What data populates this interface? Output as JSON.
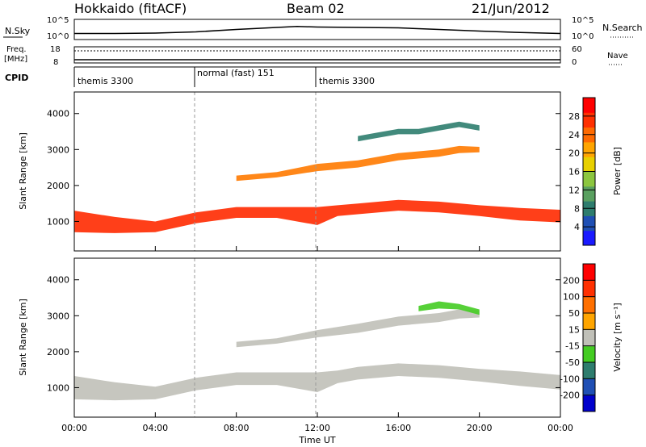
{
  "header": {
    "station": "Hokkaido (fitACF)",
    "beam": "Beam 02",
    "date": "21/Jun/2012"
  },
  "chart_data": [
    {
      "type": "line",
      "panel": "noise",
      "left_label": "N.Sky",
      "right_label": "N.Search",
      "left_ticks": [
        "10^5",
        "10^0"
      ],
      "right_ticks": [
        "10^5",
        "10^0"
      ],
      "series": [
        {
          "name": "N.Sky",
          "style": "solid",
          "x": [
            0,
            2,
            4,
            6,
            8,
            9,
            10,
            11,
            12,
            14,
            16,
            18,
            20,
            22,
            24
          ],
          "y": [
            0.3,
            0.3,
            0.32,
            0.38,
            0.5,
            0.55,
            0.6,
            0.65,
            0.62,
            0.6,
            0.58,
            0.5,
            0.42,
            0.35,
            0.3
          ]
        },
        {
          "name": "N.Search",
          "style": "dotted"
        }
      ]
    },
    {
      "type": "line",
      "panel": "frequency",
      "left_label_lines": [
        "Freq.",
        "[MHz]"
      ],
      "right_label": "Nave",
      "left_ticks": [
        "18",
        "8"
      ],
      "right_ticks": [
        "60",
        "0"
      ],
      "series": [
        {
          "name": "Freq.",
          "style": "solid",
          "x": [
            0,
            24
          ],
          "y": [
            0.2,
            0.2
          ]
        },
        {
          "name": "Nave",
          "style": "dotted",
          "x": [
            0,
            24
          ],
          "y": [
            0.75,
            0.75
          ]
        }
      ]
    },
    {
      "type": "table",
      "panel": "cpid",
      "label": "CPID",
      "segments": [
        {
          "start": 0,
          "end": 6,
          "text": "themis 3300"
        },
        {
          "start": 6,
          "end": 12,
          "text": "normal (fast) 151"
        },
        {
          "start": 12,
          "end": 24,
          "text": "themis 3300"
        }
      ]
    },
    {
      "type": "heatmap",
      "panel": "power",
      "ylabel": "Slant Range [km]",
      "ylim": [
        180,
        4600
      ],
      "yticks": [
        "1000",
        "2000",
        "3000",
        "4000"
      ],
      "ytick_values": [
        1000,
        2000,
        3000,
        4000
      ],
      "colorbar": {
        "label": "Power [dB]",
        "range": [
          0,
          32
        ],
        "ticks": [
          "4",
          "8",
          "12",
          "16",
          "20",
          "24",
          "28"
        ],
        "colors": [
          "#1a1aff",
          "#1f4fb4",
          "#2e7d6e",
          "#5aa060",
          "#8cc63f",
          "#e8d000",
          "#ffa500",
          "#ff6a00",
          "#ff3000",
          "#ff0000"
        ]
      },
      "bands": [
        {
          "x": [
            0,
            2,
            4,
            6,
            8,
            10,
            12,
            13,
            14,
            16,
            18,
            20,
            22,
            24
          ],
          "center": [
            1000,
            900,
            850,
            1100,
            1250,
            1250,
            1150,
            1300,
            1350,
            1450,
            1400,
            1300,
            1200,
            1150
          ],
          "width": [
            600,
            450,
            300,
            300,
            300,
            300,
            500,
            300,
            300,
            300,
            300,
            300,
            350,
            350
          ],
          "color": "#ff2a00"
        },
        {
          "x": [
            8,
            10,
            12,
            14,
            16,
            18,
            19,
            20
          ],
          "center": [
            2200,
            2300,
            2500,
            2600,
            2800,
            2900,
            3000,
            3000
          ],
          "width": [
            150,
            150,
            200,
            200,
            200,
            200,
            200,
            150
          ],
          "color": "#ff7a00"
        },
        {
          "x": [
            14,
            15,
            16,
            17,
            18,
            19,
            20
          ],
          "center": [
            3300,
            3400,
            3500,
            3500,
            3600,
            3700,
            3600
          ],
          "width": [
            150,
            150,
            150,
            150,
            150,
            150,
            150
          ],
          "color": "#2e7d6e"
        }
      ]
    },
    {
      "type": "heatmap",
      "panel": "velocity",
      "ylabel": "Slant Range [km]",
      "xlabel": "Time UT",
      "xlim": [
        0,
        24
      ],
      "xticks": [
        "00:00",
        "04:00",
        "08:00",
        "12:00",
        "16:00",
        "20:00",
        "00:00"
      ],
      "xtick_values": [
        0,
        4,
        8,
        12,
        16,
        20,
        24
      ],
      "ylim": [
        180,
        4600
      ],
      "yticks": [
        "1000",
        "2000",
        "3000",
        "4000"
      ],
      "ytick_values": [
        1000,
        2000,
        3000,
        4000
      ],
      "colorbar": {
        "label": "Velocity [m s⁻¹]",
        "ticks": [
          "200",
          "100",
          "50",
          "15",
          "-15",
          "-50",
          "-100",
          "-200"
        ],
        "colors": [
          "#0000cc",
          "#1f4fb4",
          "#2e7d6e",
          "#44cc22",
          "#c0c0b8",
          "#ffa500",
          "#ff7000",
          "#ff3000",
          "#ff0000"
        ]
      },
      "bands": [
        {
          "x": [
            0,
            2,
            4,
            6,
            8,
            10,
            12,
            13,
            14,
            16,
            18,
            20,
            22,
            24
          ],
          "center": [
            1000,
            900,
            850,
            1100,
            1250,
            1250,
            1150,
            1300,
            1400,
            1500,
            1450,
            1350,
            1250,
            1150
          ],
          "width": [
            650,
            500,
            350,
            350,
            350,
            350,
            550,
            350,
            350,
            350,
            350,
            350,
            400,
            400
          ],
          "color": "#c0c0b8"
        },
        {
          "x": [
            8,
            10,
            12,
            14,
            16,
            18,
            19,
            20
          ],
          "center": [
            2200,
            2300,
            2500,
            2650,
            2850,
            2950,
            3050,
            3050
          ],
          "width": [
            150,
            150,
            200,
            250,
            250,
            250,
            250,
            200
          ],
          "color": "#c0c0b8"
        },
        {
          "x": [
            17,
            18,
            19,
            20
          ],
          "center": [
            3200,
            3300,
            3250,
            3100
          ],
          "width": [
            150,
            200,
            150,
            150
          ],
          "color": "#44cc22"
        }
      ]
    }
  ]
}
